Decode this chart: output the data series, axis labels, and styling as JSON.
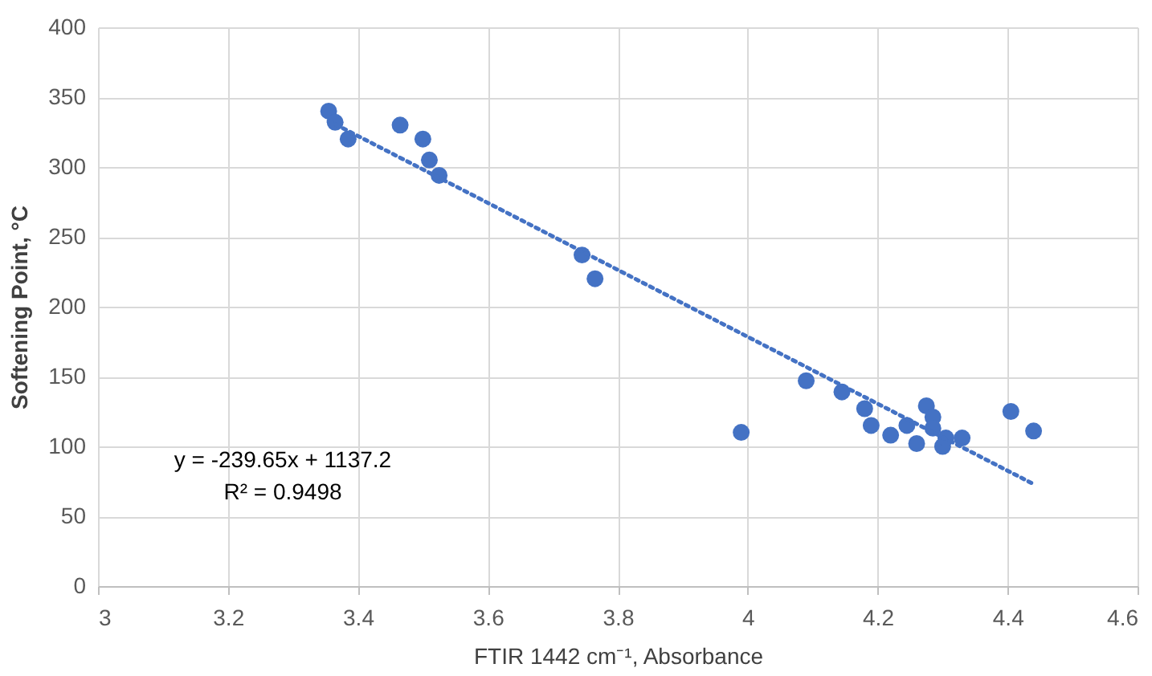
{
  "chart_data": {
    "type": "scatter",
    "xlabel": "FTIR 1442 cm⁻¹, Absorbance",
    "ylabel": "Softening Point, °C",
    "series": [
      {
        "color": "#4472c4",
        "marker": "circle",
        "x": [
          3.355,
          3.365,
          3.385,
          3.465,
          3.5,
          3.51,
          3.525,
          3.745,
          3.765,
          3.99,
          4.09,
          4.145,
          4.18,
          4.19,
          4.22,
          4.245,
          4.26,
          4.275,
          4.285,
          4.285,
          4.3,
          4.305,
          4.33,
          4.405,
          4.44
        ],
        "values": [
          340,
          332,
          320,
          330,
          320,
          305,
          294,
          237,
          220,
          110,
          147,
          139,
          127,
          115,
          108,
          115,
          102,
          129,
          121,
          113,
          100,
          106,
          106,
          125,
          111
        ]
      },
      {
        "type": "line",
        "color": "#4472c4",
        "line_style": "dotted",
        "marker": "none",
        "x": [
          3.355,
          4.44
        ],
        "values": [
          333,
          73
        ]
      }
    ],
    "annotations": [
      "y = -239.65x + 1137.2",
      "R² = 0.9498"
    ],
    "xlim": [
      3,
      4.6
    ],
    "xticks": [
      3,
      3.2,
      3.4,
      3.6,
      3.8,
      4,
      4.2,
      4.4,
      4.6
    ],
    "ylim": [
      0,
      400
    ],
    "yticks": [
      0,
      50,
      100,
      150,
      200,
      250,
      300,
      350,
      400
    ],
    "grid": true
  }
}
